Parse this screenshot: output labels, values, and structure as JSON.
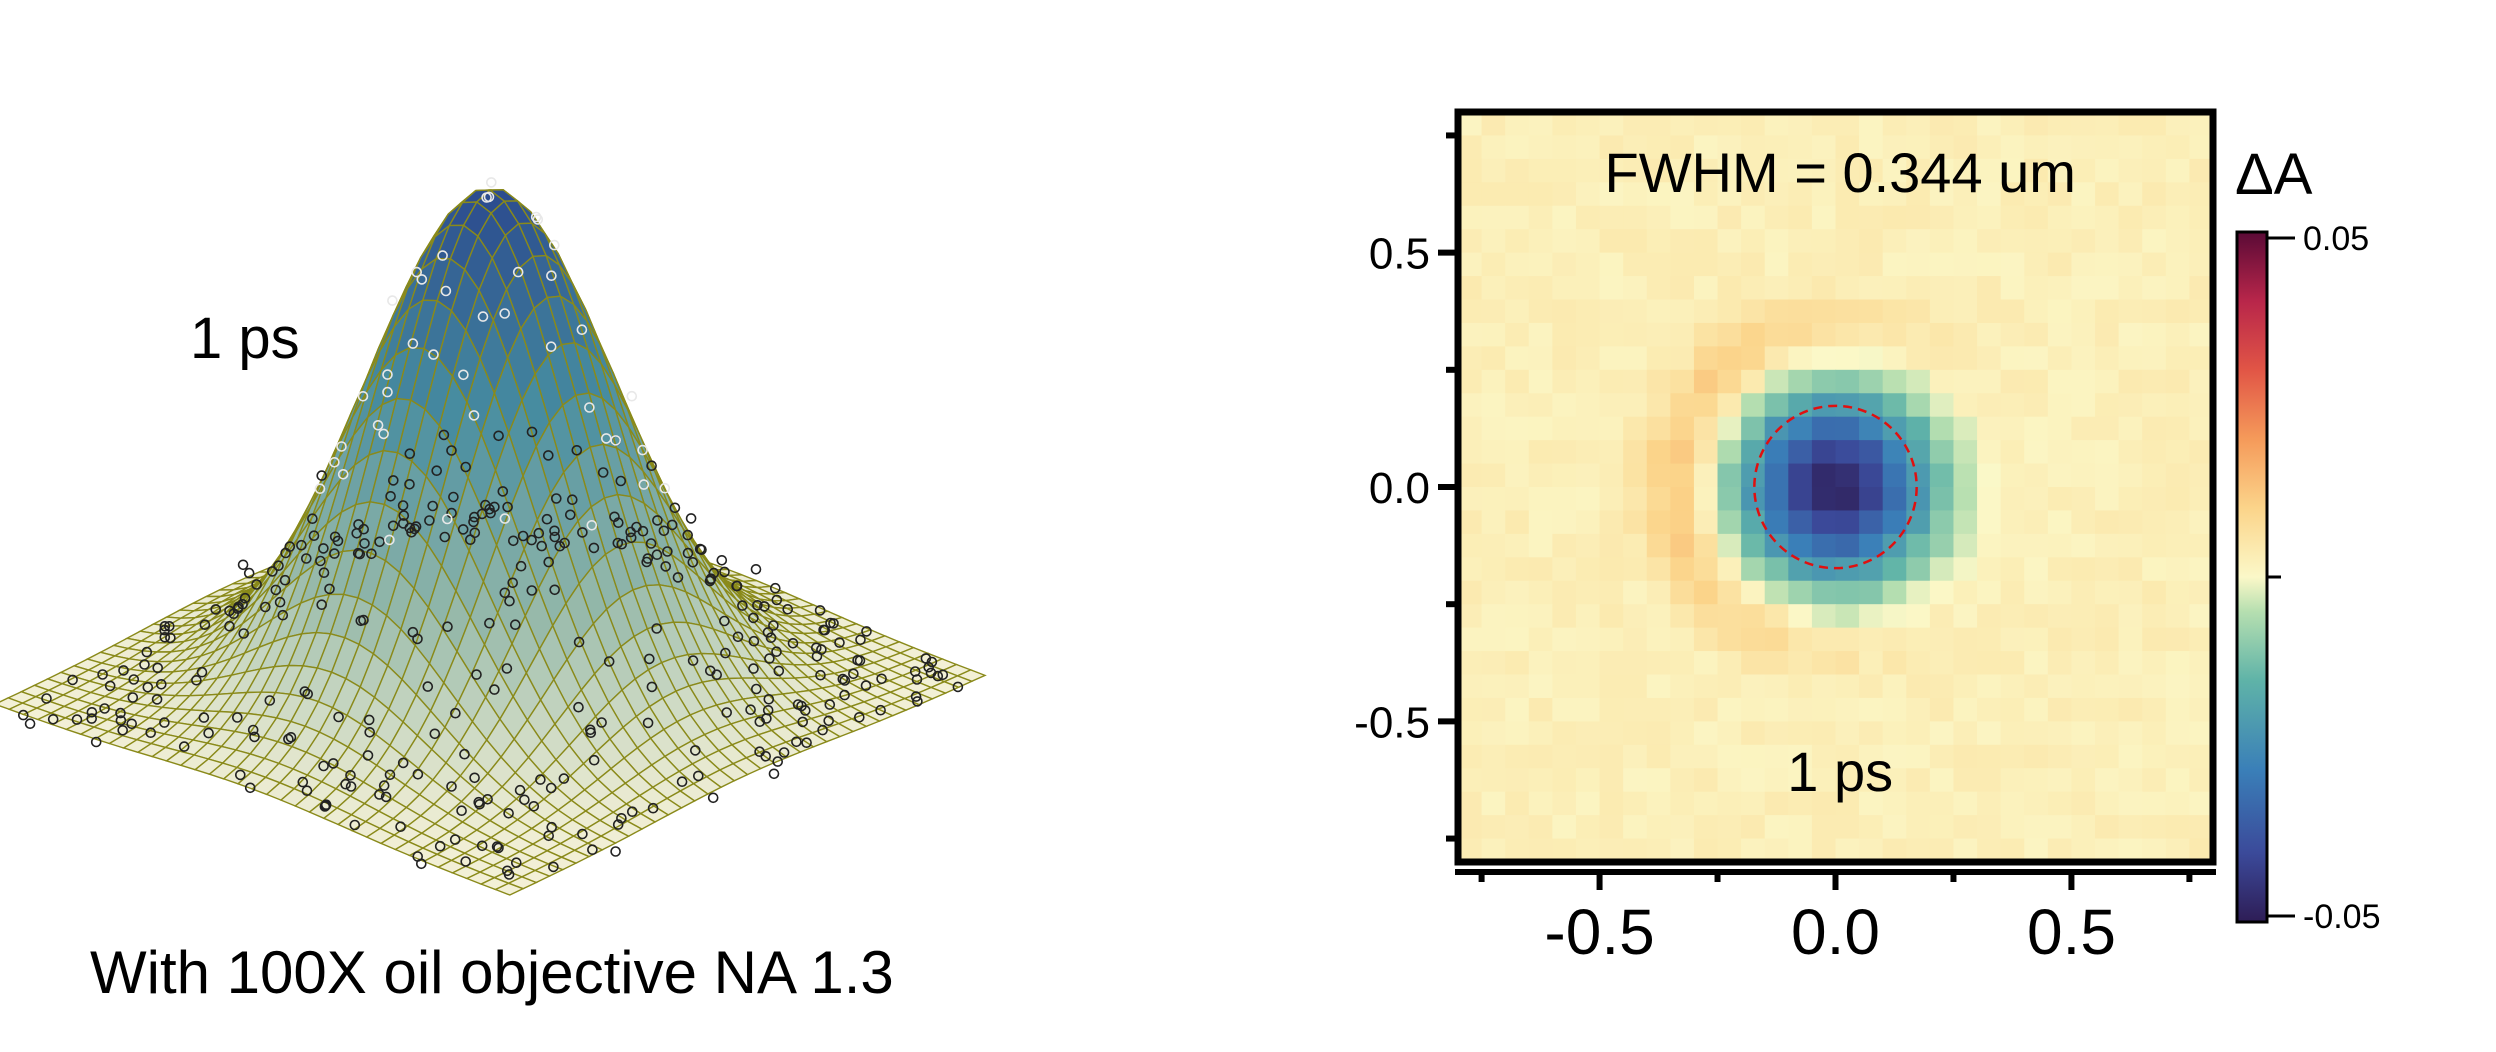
{
  "left_panel": {
    "time_label": "1 ps",
    "caption": "With 100X oil objective NA 1.3"
  },
  "chart_data": [
    {
      "type": "surface",
      "description_text": "1 ps",
      "function": "2D Gaussian",
      "colors": {
        "wire": "#8a8a1a",
        "peak": "#2b4b8e",
        "base": "#f3f0d6"
      }
    },
    {
      "type": "heatmap",
      "title": "FWHM = 0.344 um",
      "annotation": "1 ps",
      "xlim": [
        -0.8,
        0.8
      ],
      "ylim": [
        -0.8,
        0.8
      ],
      "x_ticks": [
        "-0.5",
        "0.0",
        "0.5"
      ],
      "y_ticks": [
        "0.5",
        "0.0",
        "-0.5"
      ],
      "x_tick_values": [
        -0.5,
        0.0,
        0.5
      ],
      "y_tick_values": [
        0.5,
        0.0,
        -0.5
      ],
      "center_value": -0.05,
      "ring_radius": 0.33,
      "ring_value": 0.012,
      "fwhm_um": 0.344,
      "fwhm_circle_radius": 0.172,
      "colorbar": {
        "label": "ΔA",
        "max_label": "0.05",
        "min_label": "-0.05",
        "vmax": 0.05,
        "vmin": -0.05
      }
    }
  ]
}
